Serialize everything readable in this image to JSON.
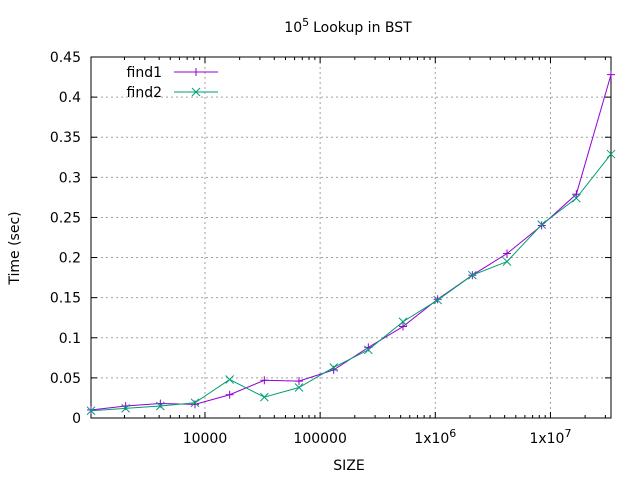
{
  "chart_data": {
    "type": "line",
    "title": {
      "base": "10",
      "sup": "5",
      "rest": "Lookup in BST"
    },
    "xlabel": "SIZE",
    "ylabel": "Time (sec)",
    "xscale": "log2",
    "xlim": [
      1024,
      33554432
    ],
    "ylim": [
      0,
      0.45
    ],
    "grid": true,
    "legend_position": "top-left",
    "x_ticks": [
      {
        "value": 10000,
        "base": "10000",
        "sup": ""
      },
      {
        "value": 100000,
        "base": "100000",
        "sup": ""
      },
      {
        "value": 1000000,
        "base": "1x10",
        "sup": "6"
      },
      {
        "value": 10000000,
        "base": "1x10",
        "sup": "7"
      }
    ],
    "y_ticks": [
      {
        "value": 0,
        "label": "0"
      },
      {
        "value": 0.05,
        "label": "0.05"
      },
      {
        "value": 0.1,
        "label": "0.1"
      },
      {
        "value": 0.15,
        "label": "0.15"
      },
      {
        "value": 0.2,
        "label": "0.2"
      },
      {
        "value": 0.25,
        "label": "0.25"
      },
      {
        "value": 0.3,
        "label": "0.3"
      },
      {
        "value": 0.35,
        "label": "0.35"
      },
      {
        "value": 0.4,
        "label": "0.4"
      },
      {
        "value": 0.45,
        "label": "0.45"
      }
    ],
    "x": [
      1024,
      2048,
      4096,
      8192,
      16384,
      32768,
      65536,
      131072,
      262144,
      524288,
      1048576,
      2097152,
      4194304,
      8388608,
      16777216,
      33554432
    ],
    "series": [
      {
        "name": "find1",
        "color": "#9400d3",
        "marker": "plus",
        "values": [
          0.01,
          0.015,
          0.018,
          0.017,
          0.029,
          0.047,
          0.046,
          0.06,
          0.088,
          0.114,
          0.148,
          0.178,
          0.205,
          0.24,
          0.279,
          0.428
        ]
      },
      {
        "name": "find2",
        "color": "#009e73",
        "marker": "cross",
        "values": [
          0.009,
          0.012,
          0.015,
          0.019,
          0.048,
          0.026,
          0.038,
          0.063,
          0.085,
          0.12,
          0.147,
          0.178,
          0.195,
          0.241,
          0.274,
          0.329
        ]
      }
    ]
  }
}
